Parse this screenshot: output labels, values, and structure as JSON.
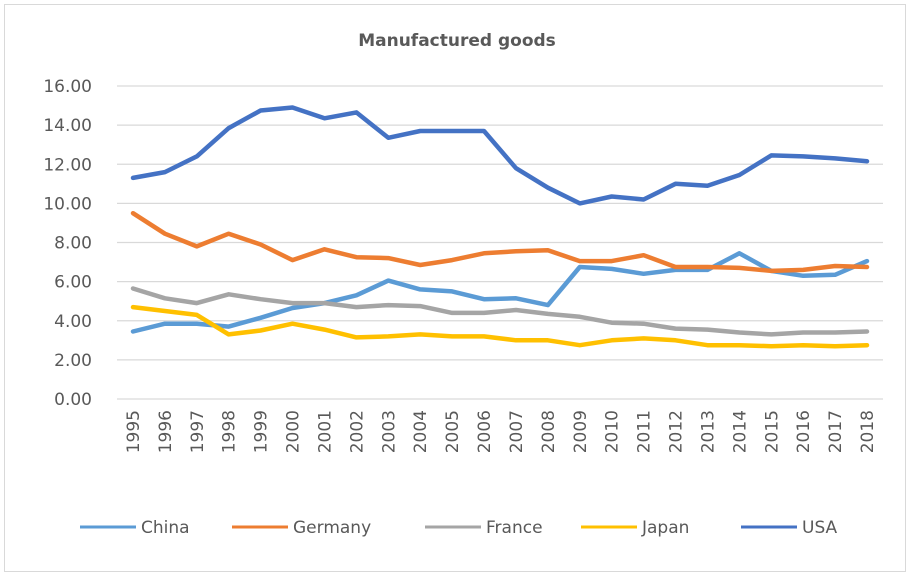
{
  "chart_data": {
    "type": "line",
    "title": "Manufactured goods",
    "xlabel": "",
    "ylabel": "",
    "ylim": [
      0,
      16
    ],
    "yticks": [
      "0.00",
      "2.00",
      "4.00",
      "6.00",
      "8.00",
      "10.00",
      "12.00",
      "14.00",
      "16.00"
    ],
    "ytick_values": [
      0,
      2,
      4,
      6,
      8,
      10,
      12,
      14,
      16
    ],
    "grid": true,
    "legend_position": "bottom",
    "categories": [
      "1995",
      "1996",
      "1997",
      "1998",
      "1999",
      "2000",
      "2001",
      "2002",
      "2003",
      "2004",
      "2005",
      "2006",
      "2007",
      "2008",
      "2009",
      "2010",
      "2011",
      "2012",
      "2013",
      "2014",
      "2015",
      "2016",
      "2017",
      "2018"
    ],
    "series": [
      {
        "name": "China",
        "color": "#5b9bd5",
        "values": [
          3.45,
          3.85,
          3.85,
          3.7,
          4.15,
          4.65,
          4.9,
          5.3,
          6.05,
          5.6,
          5.5,
          5.1,
          5.15,
          4.8,
          6.75,
          6.65,
          6.4,
          6.6,
          6.6,
          7.45,
          6.55,
          6.3,
          6.35,
          7.05
        ]
      },
      {
        "name": "Germany",
        "color": "#ed7d31",
        "values": [
          9.5,
          8.45,
          7.8,
          8.45,
          7.9,
          7.1,
          7.65,
          7.25,
          7.2,
          6.85,
          7.1,
          7.45,
          7.55,
          7.6,
          7.05,
          7.05,
          7.35,
          6.75,
          6.75,
          6.7,
          6.55,
          6.6,
          6.8,
          6.75
        ]
      },
      {
        "name": "France",
        "color": "#a5a5a5",
        "values": [
          5.65,
          5.15,
          4.9,
          5.35,
          5.1,
          4.9,
          4.9,
          4.7,
          4.8,
          4.75,
          4.4,
          4.4,
          4.55,
          4.35,
          4.2,
          3.9,
          3.85,
          3.6,
          3.55,
          3.4,
          3.3,
          3.4,
          3.4,
          3.45
        ]
      },
      {
        "name": "Japan",
        "color": "#ffc000",
        "values": [
          4.7,
          4.5,
          4.3,
          3.3,
          3.5,
          3.85,
          3.55,
          3.15,
          3.2,
          3.3,
          3.2,
          3.2,
          3.0,
          3.0,
          2.75,
          3.0,
          3.1,
          3.0,
          2.75,
          2.75,
          2.7,
          2.75,
          2.7,
          2.75
        ]
      },
      {
        "name": "USA",
        "color": "#4472c4",
        "values": [
          11.3,
          11.6,
          12.4,
          13.85,
          14.75,
          14.9,
          14.35,
          14.65,
          13.35,
          13.7,
          13.7,
          13.7,
          11.8,
          10.8,
          10.0,
          10.35,
          10.2,
          11.0,
          10.9,
          11.45,
          12.45,
          12.4,
          12.3,
          12.15
        ]
      }
    ]
  }
}
